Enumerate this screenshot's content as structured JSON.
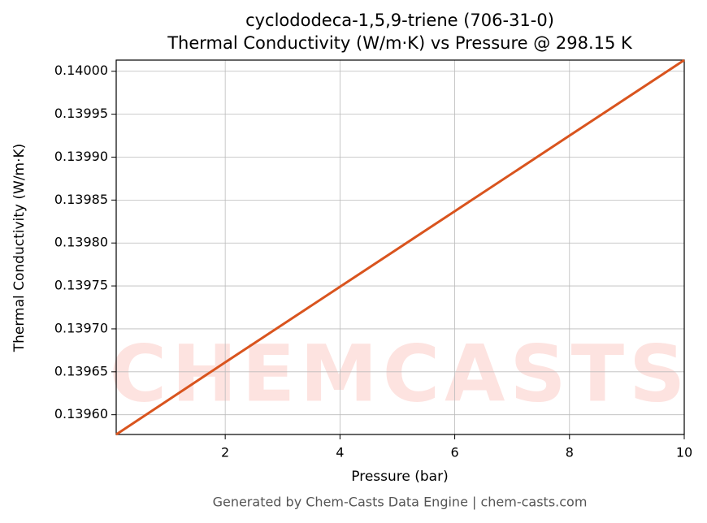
{
  "chart_data": {
    "type": "line",
    "title": "cyclododeca-1,5,9-triene (706-31-0)",
    "subtitle": "Thermal Conductivity (W/m·K) vs Pressure @ 298.15 K",
    "x_label": "Pressure (bar)",
    "y_label": "Thermal Conductivity (W/m·K)",
    "watermark": "CHEMCASTS",
    "footer": "Generated by Chem-Casts Data Engine | chem-casts.com",
    "x": [
      0.1,
      2,
      4,
      6,
      8,
      10
    ],
    "series": [
      {
        "name": "Thermal Conductivity",
        "color": "#d9541e",
        "values": [
          0.139577,
          0.139661,
          0.139749,
          0.139837,
          0.139925,
          0.140013
        ]
      }
    ],
    "xlim": [
      0.1,
      10
    ],
    "ylim": [
      0.139577,
      0.140013
    ],
    "xticks": [
      2,
      4,
      6,
      8,
      10
    ],
    "yticks": [
      {
        "value": 0.1396,
        "label": "0.13960"
      },
      {
        "value": 0.13965,
        "label": "0.13965"
      },
      {
        "value": 0.1397,
        "label": "0.13970"
      },
      {
        "value": 0.13975,
        "label": "0.13975"
      },
      {
        "value": 0.1398,
        "label": "0.13980"
      },
      {
        "value": 0.13985,
        "label": "0.13985"
      },
      {
        "value": 0.1399,
        "label": "0.13990"
      },
      {
        "value": 0.13995,
        "label": "0.13995"
      },
      {
        "value": 0.14,
        "label": "0.14000"
      }
    ],
    "grid": true
  }
}
